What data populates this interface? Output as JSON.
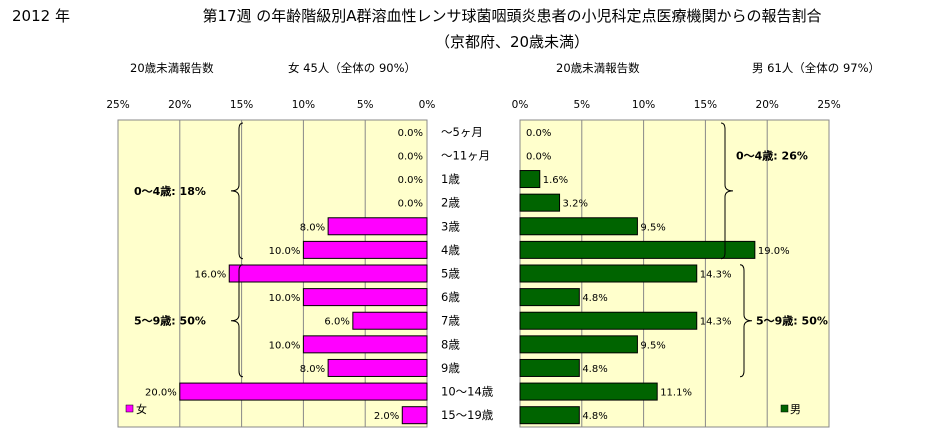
{
  "header": {
    "year": "2012 年",
    "title_line1": "第17週 の年齢階級別A群溶血性レンサ球菌咽頭炎患者の小児科定点医療機関からの報告割合",
    "title_line2": "（京都府、20歳未満）"
  },
  "chart_data": {
    "type": "bar",
    "orientation": "horizontal",
    "categories": [
      "～5ヶ月",
      "～11ヶ月",
      "1歳",
      "2歳",
      "3歳",
      "4歳",
      "5歳",
      "6歳",
      "7歳",
      "8歳",
      "9歳",
      "10～14歳",
      "15～19歳"
    ],
    "xlim": [
      0,
      25
    ],
    "x_ticks": [
      "25%",
      "20%",
      "15%",
      "10%",
      "5%",
      "0%"
    ],
    "x_ticks_right": [
      "0%",
      "5%",
      "10%",
      "15%",
      "20%",
      "25%"
    ],
    "panels": [
      {
        "side": "left",
        "subtitle_left": "20歳未満報告数",
        "subtitle_right": "女  45人（全体の  90%）",
        "series": [
          {
            "name": "女",
            "color": "#ff00ff",
            "values": [
              0.0,
              0.0,
              0.0,
              0.0,
              8.0,
              10.0,
              16.0,
              10.0,
              6.0,
              10.0,
              8.0,
              20.0,
              2.0
            ],
            "labels": [
              "0.0%",
              "0.0%",
              "0.0%",
              "0.0%",
              "8.0%",
              "10.0%",
              "16.0%",
              "10.0%",
              "6.0%",
              "10.0%",
              "8.0%",
              "20.0%",
              "2.0%"
            ]
          }
        ],
        "groups": [
          {
            "label": "0～4歳: 18%",
            "from": 0,
            "to": 5
          },
          {
            "label": "5～9歳: 50%",
            "from": 6,
            "to": 10
          }
        ],
        "legend_position": "bottom-left"
      },
      {
        "side": "right",
        "subtitle_left": "20歳未満報告数",
        "subtitle_right": "男  61人（全体の  97%）",
        "series": [
          {
            "name": "男",
            "color": "#006400",
            "values": [
              0.0,
              0.0,
              1.6,
              3.2,
              9.5,
              19.0,
              14.3,
              4.8,
              14.3,
              9.5,
              4.8,
              11.1,
              4.8
            ],
            "labels": [
              "0.0%",
              "0.0%",
              "1.6%",
              "3.2%",
              "9.5%",
              "19.0%",
              "14.3%",
              "4.8%",
              "14.3%",
              "9.5%",
              "4.8%",
              "11.1%",
              "4.8%"
            ]
          }
        ],
        "groups": [
          {
            "label": "0～4歳: 26%",
            "from": 0,
            "to": 5
          },
          {
            "label": "5～9歳: 50%",
            "from": 6,
            "to": 10
          }
        ],
        "legend_position": "bottom-right"
      }
    ]
  }
}
